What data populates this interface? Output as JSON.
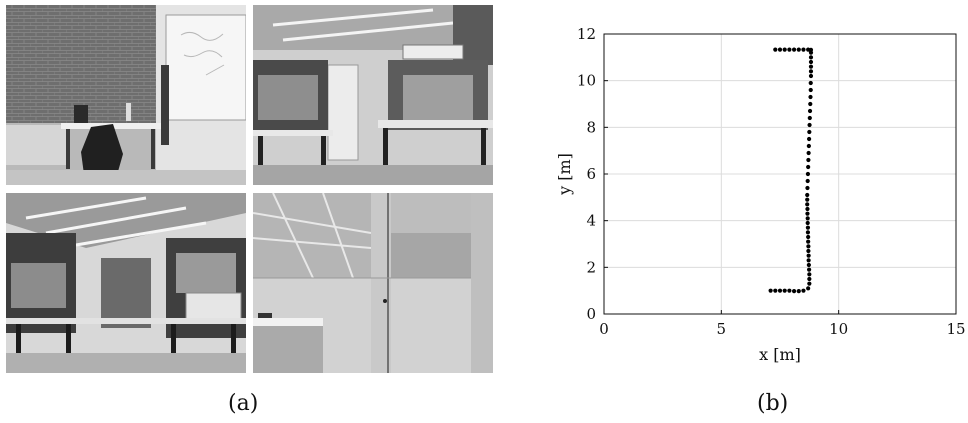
{
  "figure": {
    "panel_a_label": "(a)",
    "panel_b_label": "(b)"
  },
  "photos": [
    {
      "name": "lab-photo-whiteboard"
    },
    {
      "name": "lab-photo-workbenches"
    },
    {
      "name": "lab-photo-lab-room"
    },
    {
      "name": "lab-photo-glass-door"
    }
  ],
  "chart_data": {
    "type": "scatter",
    "title": "",
    "xlabel": "x [m]",
    "ylabel": "y [m]",
    "xlim": [
      0,
      15
    ],
    "ylim": [
      0,
      12
    ],
    "xticks": [
      0,
      5,
      10,
      15
    ],
    "yticks": [
      0,
      2,
      4,
      6,
      8,
      10,
      12
    ],
    "grid": true,
    "marker_color": "#000000",
    "series": [
      {
        "x": [
          7.1,
          7.3,
          7.5,
          7.7,
          7.9,
          8.1,
          8.3,
          8.5,
          8.7,
          8.75,
          8.75,
          8.75,
          8.74,
          8.73,
          8.72,
          8.72,
          8.71,
          8.71,
          8.7,
          8.7,
          8.69,
          8.69,
          8.68,
          8.68,
          8.67,
          8.67,
          8.66,
          8.66,
          8.66,
          8.67,
          8.68,
          8.69,
          8.7,
          8.71,
          8.72,
          8.73,
          8.74,
          8.75,
          8.76,
          8.77,
          8.78,
          8.79,
          8.8,
          8.81,
          8.81,
          8.82,
          8.82,
          8.82,
          8.82,
          8.82,
          8.82,
          8.82,
          8.7,
          8.5,
          8.3,
          8.1,
          7.9,
          7.7,
          7.5,
          7.3
        ],
        "y": [
          1.0,
          1.0,
          1.0,
          1.0,
          1.0,
          0.98,
          0.98,
          1.0,
          1.1,
          1.3,
          1.5,
          1.7,
          1.9,
          2.1,
          2.3,
          2.5,
          2.7,
          2.9,
          3.1,
          3.3,
          3.5,
          3.7,
          3.9,
          4.1,
          4.3,
          4.5,
          4.7,
          4.9,
          5.1,
          5.4,
          5.7,
          6.0,
          6.3,
          6.6,
          6.9,
          7.2,
          7.5,
          7.8,
          8.1,
          8.4,
          8.7,
          9.0,
          9.3,
          9.6,
          9.9,
          10.2,
          10.4,
          10.6,
          10.8,
          11.0,
          11.2,
          11.32,
          11.33,
          11.33,
          11.33,
          11.33,
          11.33,
          11.33,
          11.33,
          11.33
        ]
      }
    ]
  }
}
